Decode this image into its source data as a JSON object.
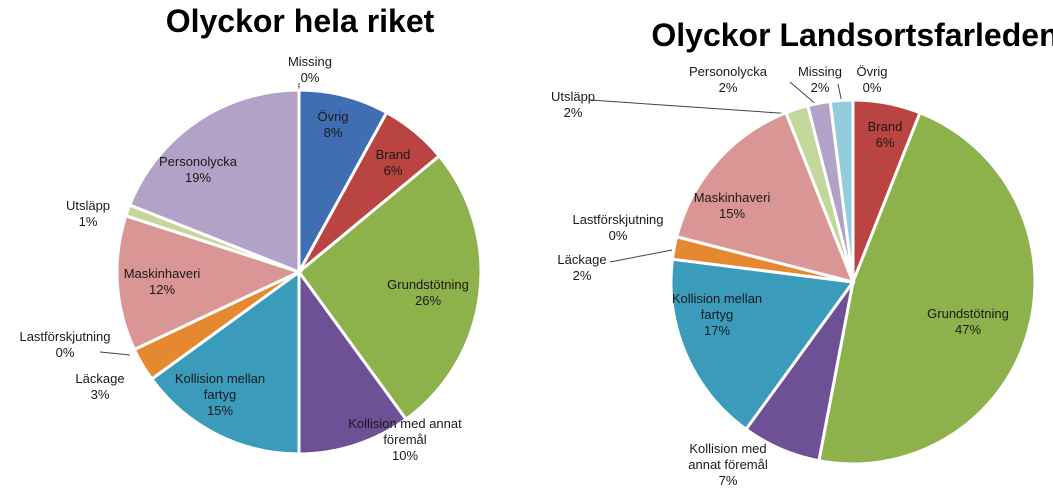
{
  "chart_data": [
    {
      "type": "pie",
      "title": "Olyckor hela riket",
      "categories": [
        "Missing",
        "Övrig",
        "Brand",
        "Grundstötning",
        "Kollision med annat föremål",
        "Kollision mellan fartyg",
        "Läckage",
        "Lastförskjutning",
        "Maskinhaveri",
        "Utsläpp",
        "Personolycka"
      ],
      "values": [
        0,
        8,
        6,
        26,
        10,
        15,
        3,
        0,
        12,
        1,
        19
      ],
      "value_labels": [
        "0%",
        "8%",
        "6%",
        "26%",
        "10%",
        "15%",
        "3%",
        "0%",
        "12%",
        "1%",
        "19%"
      ],
      "colors": [
        "#93cddd",
        "#3f6fb2",
        "#b94441",
        "#8db14b",
        "#6e5096",
        "#3a9bbb",
        "#e5882f",
        "#4f81bd",
        "#d99694",
        "#c3d69b",
        "#b3a2c7"
      ]
    },
    {
      "type": "pie",
      "title": "Olyckor Landsortsfarleden",
      "categories": [
        "Brand",
        "Grundstötning",
        "Kollision med annat föremål",
        "Kollision mellan fartyg",
        "Läckage",
        "Lastförskjutning",
        "Maskinhaveri",
        "Utsläpp",
        "Personolycka",
        "Missing",
        "Övrig"
      ],
      "values": [
        6,
        47,
        7,
        17,
        2,
        0,
        15,
        2,
        2,
        2,
        0
      ],
      "value_labels": [
        "6%",
        "47%",
        "7%",
        "17%",
        "2%",
        "0%",
        "15%",
        "2%",
        "2%",
        "2%",
        "0%"
      ],
      "colors": [
        "#b94441",
        "#8db14b",
        "#6e5096",
        "#3a9bbb",
        "#e5882f",
        "#4f81bd",
        "#d99694",
        "#c3d69b",
        "#b3a2c7",
        "#93cddd",
        "#3f6fb2"
      ]
    }
  ]
}
